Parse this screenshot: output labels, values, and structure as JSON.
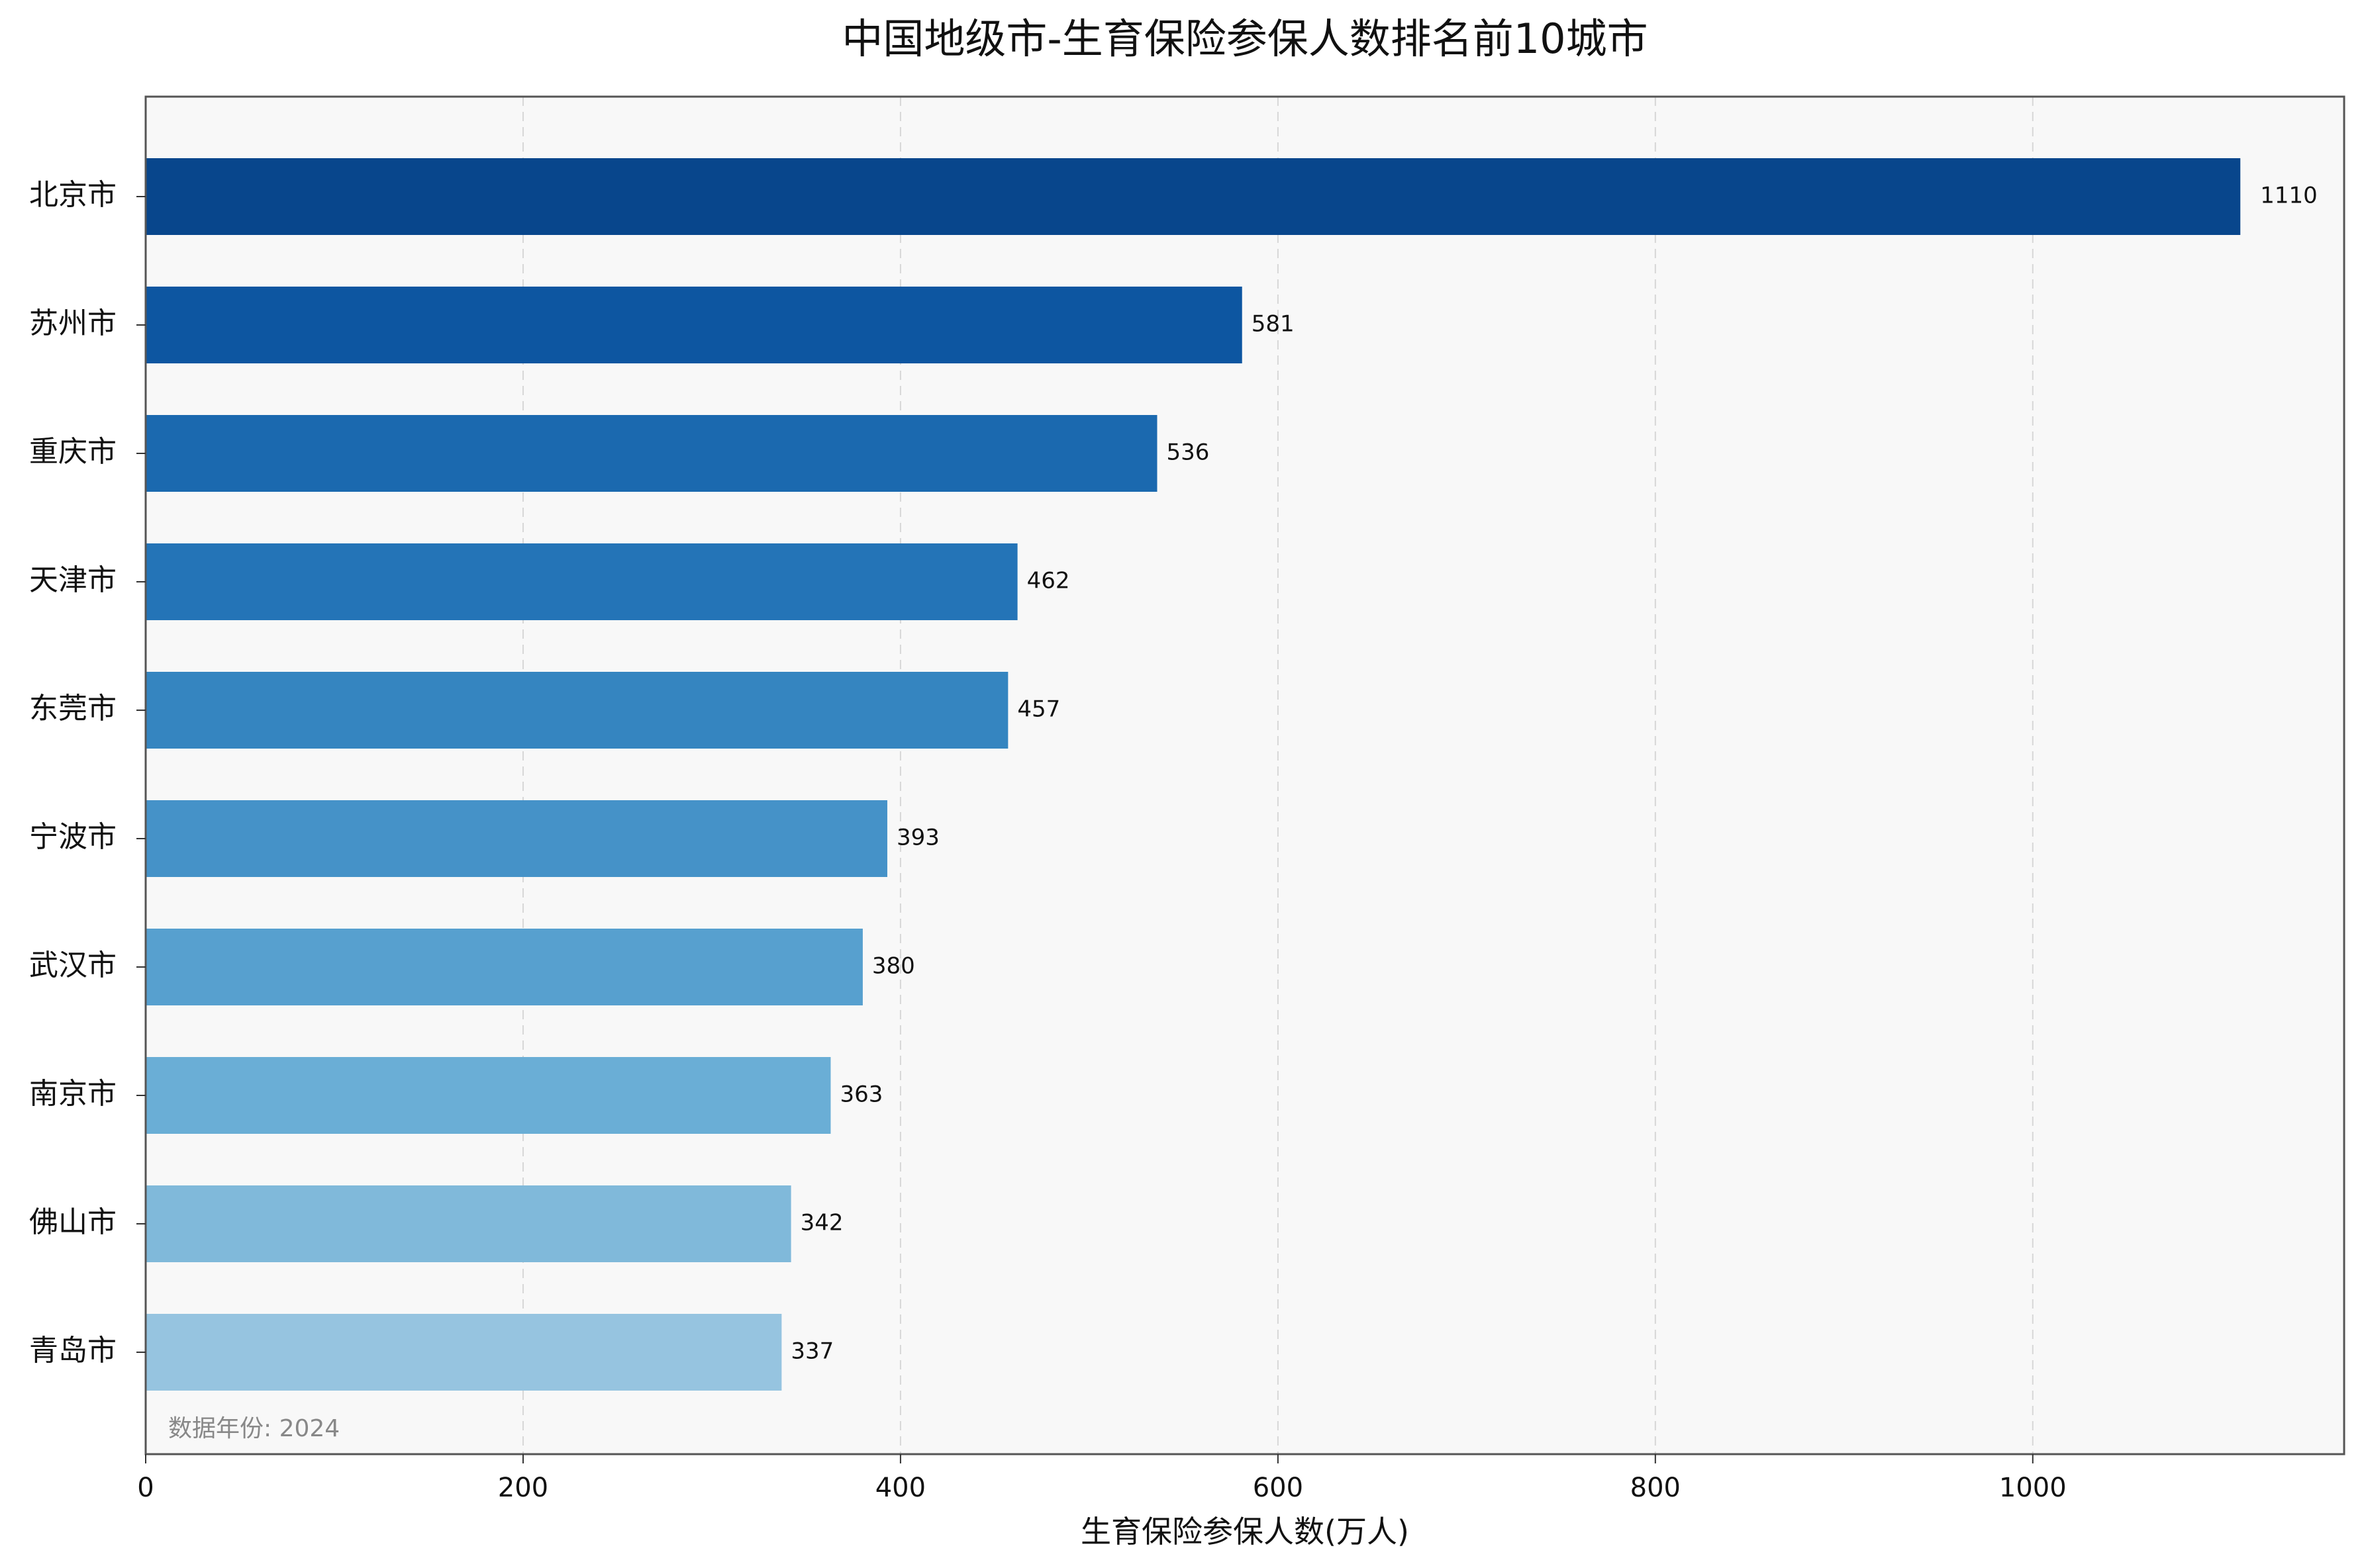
{
  "chart_data": {
    "type": "bar",
    "orientation": "horizontal",
    "title": "中国地级市-生育保险参保人数排名前10城市",
    "xlabel": "生育保险参保人数(万人)",
    "ylabel": "",
    "categories": [
      "北京市",
      "苏州市",
      "重庆市",
      "天津市",
      "东莞市",
      "宁波市",
      "武汉市",
      "南京市",
      "佛山市",
      "青岛市"
    ],
    "values": [
      1110,
      581,
      536,
      462,
      457,
      393,
      380,
      363,
      342,
      337
    ],
    "value_labels": [
      "1110",
      "581",
      "536",
      "462",
      "457",
      "393",
      "380",
      "363",
      "342",
      "337"
    ],
    "xlim": [
      0,
      1165
    ],
    "xticks": [
      0,
      200,
      400,
      600,
      800,
      1000
    ],
    "xtick_labels": [
      "0",
      "200",
      "400",
      "600",
      "800",
      "1000"
    ],
    "grid": "x-dashed",
    "note": "数据年份: 2024",
    "colors": [
      "#08468c",
      "#0d56a1",
      "#1b69af",
      "#2474b7",
      "#3585c0",
      "#4592c8",
      "#57a0cf",
      "#6aaed6",
      "#80b9da",
      "#96c4e0"
    ],
    "plot_background": "#f8f8f8",
    "frame_color": "#555555"
  }
}
